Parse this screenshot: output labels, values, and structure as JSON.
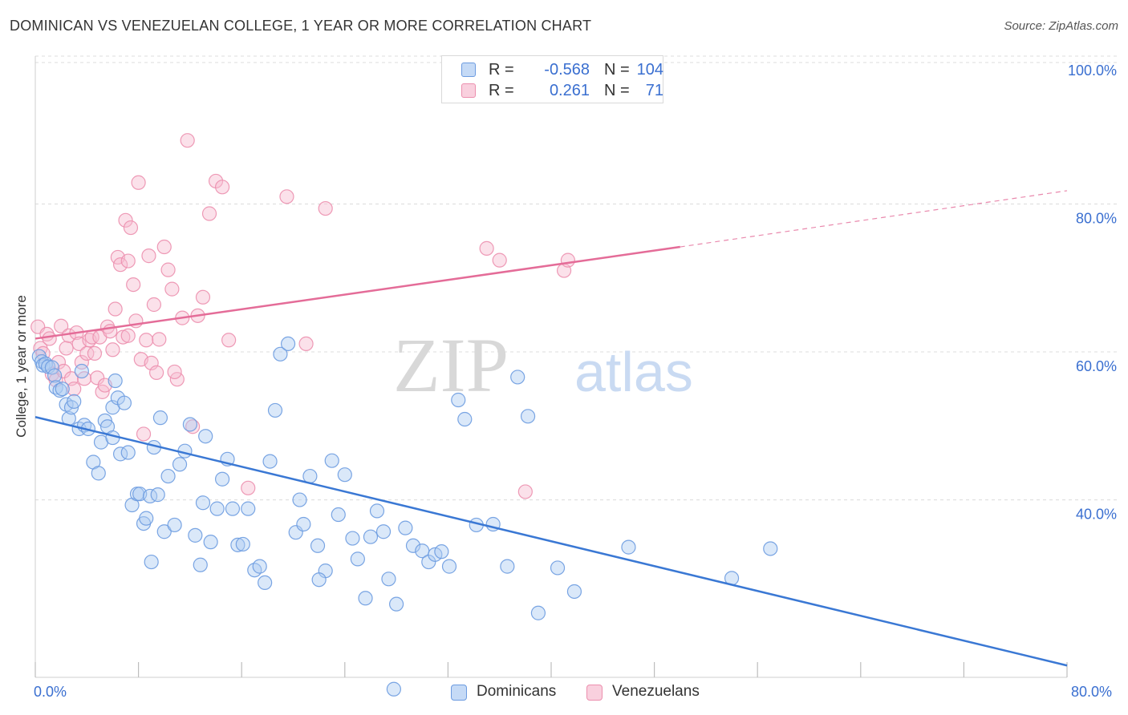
{
  "header": {
    "title": "DOMINICAN VS VENEZUELAN COLLEGE, 1 YEAR OR MORE CORRELATION CHART",
    "source": "Source: ZipAtlas.com"
  },
  "legend": {
    "rows": [
      {
        "r_label": "R =",
        "r_value": "-0.568",
        "n_label": "N =",
        "n_value": "104"
      },
      {
        "r_label": "R =",
        "r_value": "0.261",
        "n_label": "N =",
        "n_value": "71"
      }
    ],
    "bottom": [
      "Dominicans",
      "Venezuelans"
    ]
  },
  "colors": {
    "blue_fill": "#aecbf2",
    "blue_stroke": "#6c9be0",
    "blue_line": "#3a78d4",
    "pink_fill": "#f7bdd0",
    "pink_stroke": "#ec8fae",
    "pink_line": "#e46c98",
    "axis_label": "#3a6fd0",
    "grid": "#dcdcdc"
  },
  "watermark": {
    "zip": "ZIP",
    "atlas": "atlas"
  },
  "chart_data": {
    "type": "scatter",
    "title": "DOMINICAN VS VENEZUELAN COLLEGE, 1 YEAR OR MORE CORRELATION CHART",
    "xlabel": "",
    "ylabel": "College, 1 year or more",
    "xlim": [
      0,
      80
    ],
    "ylim": [
      16,
      100
    ],
    "x_tick_labels": [
      "0.0%",
      "80.0%"
    ],
    "y_ticks": [
      40,
      60,
      80,
      100
    ],
    "y_tick_labels": [
      "40.0%",
      "60.0%",
      "80.0%",
      "100.0%"
    ],
    "grid": true,
    "legend_position": "top-center",
    "series": [
      {
        "name": "Dominicans",
        "R": -0.568,
        "N": 104,
        "trend": {
          "x": [
            0,
            80
          ],
          "y": [
            51.2,
            17.6
          ]
        },
        "points": [
          [
            0.3,
            59.4
          ],
          [
            0.5,
            58.7
          ],
          [
            0.6,
            58.2
          ],
          [
            0.8,
            58.4
          ],
          [
            1.0,
            58.0
          ],
          [
            1.3,
            57.9
          ],
          [
            1.5,
            56.8
          ],
          [
            1.6,
            55.2
          ],
          [
            1.9,
            54.8
          ],
          [
            2.1,
            55.0
          ],
          [
            2.4,
            52.9
          ],
          [
            2.6,
            51.0
          ],
          [
            2.8,
            52.5
          ],
          [
            3.0,
            53.3
          ],
          [
            3.4,
            49.6
          ],
          [
            3.8,
            50.1
          ],
          [
            4.1,
            49.6
          ],
          [
            4.5,
            45.1
          ],
          [
            4.9,
            43.6
          ],
          [
            5.1,
            47.8
          ],
          [
            5.4,
            50.7
          ],
          [
            5.6,
            49.9
          ],
          [
            6.0,
            52.5
          ],
          [
            6.2,
            56.1
          ],
          [
            6.4,
            53.8
          ],
          [
            6.6,
            46.2
          ],
          [
            6.9,
            53.1
          ],
          [
            7.2,
            46.4
          ],
          [
            7.5,
            39.3
          ],
          [
            7.9,
            40.8
          ],
          [
            8.1,
            40.8
          ],
          [
            8.4,
            36.8
          ],
          [
            8.6,
            37.5
          ],
          [
            8.9,
            40.5
          ],
          [
            9.2,
            47.1
          ],
          [
            9.5,
            40.7
          ],
          [
            9.7,
            51.1
          ],
          [
            10.0,
            35.7
          ],
          [
            10.3,
            43.2
          ],
          [
            10.8,
            36.6
          ],
          [
            11.2,
            44.8
          ],
          [
            11.6,
            46.6
          ],
          [
            12.0,
            50.2
          ],
          [
            12.4,
            35.2
          ],
          [
            12.8,
            31.2
          ],
          [
            13.2,
            48.6
          ],
          [
            13.6,
            34.3
          ],
          [
            14.1,
            38.8
          ],
          [
            14.5,
            42.8
          ],
          [
            14.9,
            45.5
          ],
          [
            15.3,
            38.8
          ],
          [
            15.7,
            33.9
          ],
          [
            16.1,
            34.0
          ],
          [
            16.5,
            38.8
          ],
          [
            17.0,
            30.5
          ],
          [
            17.4,
            31.0
          ],
          [
            17.8,
            28.8
          ],
          [
            18.2,
            45.2
          ],
          [
            18.6,
            52.1
          ],
          [
            19.0,
            59.7
          ],
          [
            19.6,
            61.1
          ],
          [
            20.2,
            35.6
          ],
          [
            20.8,
            36.7
          ],
          [
            21.3,
            43.2
          ],
          [
            21.9,
            33.8
          ],
          [
            22.5,
            30.4
          ],
          [
            23.0,
            45.3
          ],
          [
            23.5,
            38.0
          ],
          [
            24.0,
            43.4
          ],
          [
            24.6,
            34.8
          ],
          [
            25.0,
            32.0
          ],
          [
            25.6,
            26.7
          ],
          [
            26.0,
            35.0
          ],
          [
            26.5,
            38.5
          ],
          [
            27.0,
            35.7
          ],
          [
            27.4,
            29.3
          ],
          [
            28.0,
            25.9
          ],
          [
            28.7,
            36.2
          ],
          [
            29.3,
            33.8
          ],
          [
            30.0,
            33.1
          ],
          [
            30.5,
            31.6
          ],
          [
            31.0,
            32.6
          ],
          [
            31.5,
            33.0
          ],
          [
            32.1,
            31.0
          ],
          [
            32.8,
            53.5
          ],
          [
            33.3,
            50.9
          ],
          [
            34.2,
            36.6
          ],
          [
            35.5,
            36.7
          ],
          [
            36.6,
            31.0
          ],
          [
            37.4,
            56.6
          ],
          [
            38.2,
            51.3
          ],
          [
            39.0,
            24.7
          ],
          [
            40.5,
            30.8
          ],
          [
            41.8,
            27.6
          ],
          [
            46.0,
            33.6
          ],
          [
            54.0,
            29.4
          ],
          [
            57.0,
            33.4
          ],
          [
            6.0,
            48.4
          ],
          [
            9.0,
            31.6
          ],
          [
            13.0,
            39.6
          ],
          [
            20.5,
            40.0
          ],
          [
            27.8,
            14.4
          ],
          [
            22.0,
            29.2
          ],
          [
            3.6,
            57.4
          ]
        ]
      },
      {
        "name": "Venezuelans",
        "R": 0.261,
        "N": 71,
        "trend": {
          "x": [
            0,
            50
          ],
          "y": [
            61.8,
            74.2
          ]
        },
        "trend_dashed": {
          "x": [
            50,
            80
          ],
          "y": [
            74.2,
            81.8
          ]
        },
        "points": [
          [
            0.2,
            63.4
          ],
          [
            0.4,
            60.5
          ],
          [
            0.6,
            59.8
          ],
          [
            0.9,
            62.4
          ],
          [
            1.1,
            61.8
          ],
          [
            1.3,
            57.0
          ],
          [
            1.6,
            56.2
          ],
          [
            1.8,
            58.6
          ],
          [
            2.0,
            63.5
          ],
          [
            2.2,
            57.4
          ],
          [
            2.4,
            60.5
          ],
          [
            2.6,
            62.2
          ],
          [
            2.8,
            56.4
          ],
          [
            3.0,
            55.0
          ],
          [
            3.2,
            62.6
          ],
          [
            3.4,
            61.1
          ],
          [
            3.6,
            58.6
          ],
          [
            3.8,
            56.4
          ],
          [
            4.0,
            59.8
          ],
          [
            4.2,
            61.6
          ],
          [
            4.4,
            62.0
          ],
          [
            4.6,
            59.8
          ],
          [
            4.8,
            56.5
          ],
          [
            5.0,
            62.0
          ],
          [
            5.2,
            54.6
          ],
          [
            5.4,
            55.5
          ],
          [
            5.6,
            63.4
          ],
          [
            5.8,
            62.8
          ],
          [
            6.0,
            60.3
          ],
          [
            6.2,
            65.8
          ],
          [
            6.4,
            72.8
          ],
          [
            6.6,
            71.8
          ],
          [
            6.8,
            62.0
          ],
          [
            7.0,
            77.8
          ],
          [
            7.2,
            72.3
          ],
          [
            7.4,
            76.8
          ],
          [
            7.6,
            69.1
          ],
          [
            7.8,
            64.2
          ],
          [
            8.0,
            82.9
          ],
          [
            8.2,
            59.0
          ],
          [
            8.4,
            48.9
          ],
          [
            8.6,
            61.6
          ],
          [
            8.8,
            73.0
          ],
          [
            9.0,
            58.5
          ],
          [
            9.2,
            66.4
          ],
          [
            9.4,
            57.2
          ],
          [
            9.6,
            61.7
          ],
          [
            10.0,
            74.2
          ],
          [
            10.3,
            71.1
          ],
          [
            10.6,
            68.5
          ],
          [
            11.0,
            56.3
          ],
          [
            11.4,
            64.6
          ],
          [
            11.8,
            88.6
          ],
          [
            12.2,
            49.9
          ],
          [
            12.6,
            64.9
          ],
          [
            13.0,
            67.4
          ],
          [
            13.5,
            78.7
          ],
          [
            14.0,
            83.1
          ],
          [
            14.5,
            82.3
          ],
          [
            15.0,
            61.6
          ],
          [
            16.5,
            41.6
          ],
          [
            19.5,
            81.0
          ],
          [
            21.0,
            61.1
          ],
          [
            22.5,
            79.4
          ],
          [
            35.0,
            74.0
          ],
          [
            36.0,
            72.4
          ],
          [
            38.0,
            41.1
          ],
          [
            41.0,
            71.0
          ],
          [
            41.3,
            72.4
          ],
          [
            10.8,
            57.3
          ],
          [
            7.2,
            62.2
          ]
        ]
      }
    ]
  }
}
